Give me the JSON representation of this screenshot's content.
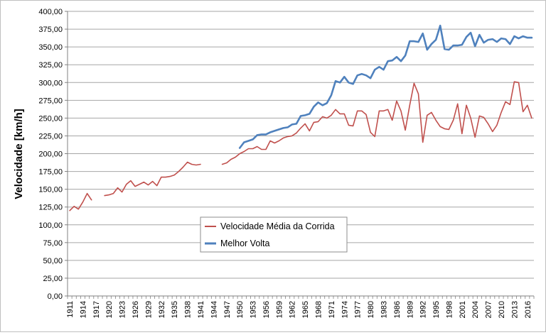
{
  "chart_data": {
    "type": "line",
    "ylabel": "Velocidade [km/h]",
    "xlabel": "",
    "title": "",
    "ylim": [
      0,
      400
    ],
    "y_ticks": [
      "0,00",
      "25,00",
      "50,00",
      "75,00",
      "100,00",
      "125,00",
      "150,00",
      "175,00",
      "200,00",
      "225,00",
      "250,00",
      "275,00",
      "300,00",
      "325,00",
      "350,00",
      "375,00",
      "400,00"
    ],
    "x_range": [
      1911,
      2017
    ],
    "x_ticks": [
      "1911",
      "1914",
      "1917",
      "1920",
      "1923",
      "1926",
      "1929",
      "1932",
      "1935",
      "1938",
      "1941",
      "1944",
      "1947",
      "1950",
      "1953",
      "1956",
      "1959",
      "1962",
      "1965",
      "1968",
      "1971",
      "1974",
      "1977",
      "1980",
      "1983",
      "1986",
      "1989",
      "1992",
      "1995",
      "1998",
      "2001",
      "2004",
      "2007",
      "2010",
      "2013",
      "2016"
    ],
    "grid": true,
    "legend_position": "center",
    "series": [
      {
        "name": "Velocidade Média da Corrida",
        "color": "#c0504d",
        "points": [
          [
            1911,
            120
          ],
          [
            1912,
            126
          ],
          [
            1913,
            122
          ],
          [
            1914,
            132
          ],
          [
            1915,
            144
          ],
          [
            1916,
            135
          ],
          [
            1919,
            141
          ],
          [
            1920,
            142
          ],
          [
            1921,
            144
          ],
          [
            1922,
            152
          ],
          [
            1923,
            146
          ],
          [
            1924,
            157
          ],
          [
            1925,
            162
          ],
          [
            1926,
            154
          ],
          [
            1927,
            157
          ],
          [
            1928,
            160
          ],
          [
            1929,
            156
          ],
          [
            1930,
            161
          ],
          [
            1931,
            155
          ],
          [
            1932,
            167
          ],
          [
            1933,
            167
          ],
          [
            1934,
            168
          ],
          [
            1935,
            170
          ],
          [
            1936,
            175
          ],
          [
            1937,
            181
          ],
          [
            1938,
            188
          ],
          [
            1939,
            185
          ],
          [
            1940,
            184
          ],
          [
            1941,
            185
          ],
          [
            1946,
            185
          ],
          [
            1947,
            187
          ],
          [
            1948,
            192
          ],
          [
            1949,
            195
          ],
          [
            1950,
            200
          ],
          [
            1951,
            203
          ],
          [
            1952,
            207
          ],
          [
            1953,
            207
          ],
          [
            1954,
            210
          ],
          [
            1955,
            206
          ],
          [
            1956,
            206
          ],
          [
            1957,
            218
          ],
          [
            1958,
            215
          ],
          [
            1959,
            218
          ],
          [
            1960,
            222
          ],
          [
            1961,
            224
          ],
          [
            1962,
            225
          ],
          [
            1963,
            229
          ],
          [
            1964,
            236
          ],
          [
            1965,
            242
          ],
          [
            1966,
            232
          ],
          [
            1967,
            244
          ],
          [
            1968,
            245
          ],
          [
            1969,
            252
          ],
          [
            1970,
            250
          ],
          [
            1971,
            254
          ],
          [
            1972,
            262
          ],
          [
            1973,
            256
          ],
          [
            1974,
            256
          ],
          [
            1975,
            240
          ],
          [
            1976,
            239
          ],
          [
            1977,
            260
          ],
          [
            1978,
            260
          ],
          [
            1979,
            255
          ],
          [
            1980,
            230
          ],
          [
            1981,
            224
          ],
          [
            1982,
            260
          ],
          [
            1983,
            260
          ],
          [
            1984,
            262
          ],
          [
            1985,
            247
          ],
          [
            1986,
            274
          ],
          [
            1987,
            260
          ],
          [
            1988,
            233
          ],
          [
            1989,
            268
          ],
          [
            1990,
            299
          ],
          [
            1991,
            284
          ],
          [
            1992,
            216
          ],
          [
            1993,
            254
          ],
          [
            1994,
            258
          ],
          [
            1995,
            247
          ],
          [
            1996,
            238
          ],
          [
            1997,
            235
          ],
          [
            1998,
            234
          ],
          [
            1999,
            247
          ],
          [
            2000,
            270
          ],
          [
            2001,
            228
          ],
          [
            2002,
            268
          ],
          [
            2003,
            250
          ],
          [
            2004,
            223
          ],
          [
            2005,
            253
          ],
          [
            2006,
            251
          ],
          [
            2007,
            242
          ],
          [
            2008,
            231
          ],
          [
            2009,
            240
          ],
          [
            2010,
            258
          ],
          [
            2011,
            273
          ],
          [
            2012,
            269
          ],
          [
            2013,
            301
          ],
          [
            2014,
            300
          ],
          [
            2015,
            259
          ],
          [
            2016,
            268
          ],
          [
            2017,
            250
          ]
        ]
      },
      {
        "name": "Melhor Volta",
        "color": "#4f81bd",
        "points": [
          [
            1950,
            208
          ],
          [
            1951,
            216
          ],
          [
            1952,
            218
          ],
          [
            1953,
            220
          ],
          [
            1954,
            226
          ],
          [
            1955,
            227
          ],
          [
            1956,
            227
          ],
          [
            1957,
            230
          ],
          [
            1958,
            232
          ],
          [
            1959,
            234
          ],
          [
            1960,
            236
          ],
          [
            1961,
            237
          ],
          [
            1962,
            241
          ],
          [
            1963,
            242
          ],
          [
            1964,
            253
          ],
          [
            1965,
            254
          ],
          [
            1966,
            256
          ],
          [
            1967,
            266
          ],
          [
            1968,
            272
          ],
          [
            1969,
            268
          ],
          [
            1970,
            271
          ],
          [
            1971,
            282
          ],
          [
            1972,
            302
          ],
          [
            1973,
            300
          ],
          [
            1974,
            308
          ],
          [
            1975,
            300
          ],
          [
            1976,
            298
          ],
          [
            1977,
            310
          ],
          [
            1978,
            312
          ],
          [
            1979,
            310
          ],
          [
            1980,
            306
          ],
          [
            1981,
            318
          ],
          [
            1982,
            322
          ],
          [
            1983,
            318
          ],
          [
            1984,
            330
          ],
          [
            1985,
            331
          ],
          [
            1986,
            336
          ],
          [
            1987,
            330
          ],
          [
            1988,
            338
          ],
          [
            1989,
            358
          ],
          [
            1990,
            358
          ],
          [
            1991,
            357
          ],
          [
            1992,
            369
          ],
          [
            1993,
            346
          ],
          [
            1994,
            354
          ],
          [
            1995,
            360
          ],
          [
            1996,
            380
          ],
          [
            1997,
            347
          ],
          [
            1998,
            346
          ],
          [
            1999,
            352
          ],
          [
            2000,
            352
          ],
          [
            2001,
            353
          ],
          [
            2002,
            364
          ],
          [
            2003,
            370
          ],
          [
            2004,
            351
          ],
          [
            2005,
            367
          ],
          [
            2006,
            356
          ],
          [
            2007,
            360
          ],
          [
            2008,
            361
          ],
          [
            2009,
            357
          ],
          [
            2010,
            362
          ],
          [
            2011,
            361
          ],
          [
            2012,
            354
          ],
          [
            2013,
            365
          ],
          [
            2014,
            362
          ],
          [
            2015,
            365
          ],
          [
            2016,
            363
          ],
          [
            2017,
            363
          ]
        ]
      }
    ]
  }
}
